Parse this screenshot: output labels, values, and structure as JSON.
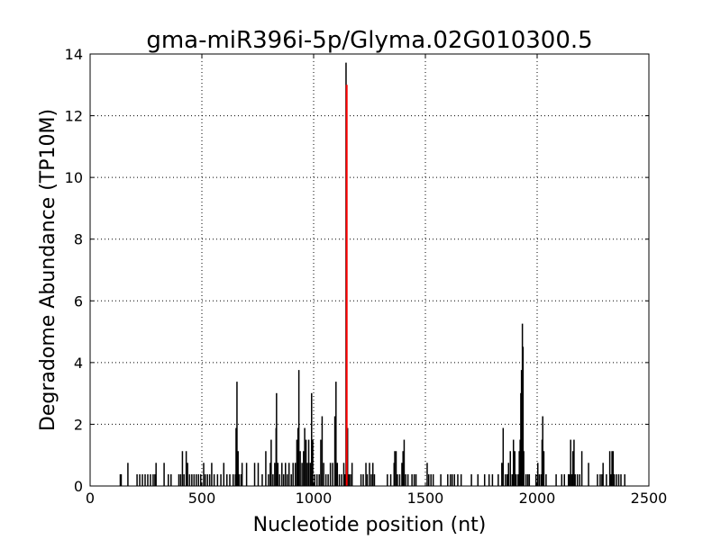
{
  "chart_data": {
    "type": "bar",
    "title": "gma-miR396i-5p/Glyma.02G010300.5",
    "xlabel": "Nucleotide position (nt)",
    "ylabel": "Degradome Abundance (TP10M)",
    "xlim": [
      0,
      2500
    ],
    "ylim": [
      0,
      14
    ],
    "xticks": [
      "0",
      "500",
      "1000",
      "1500",
      "2000",
      "2500"
    ],
    "yticks": [
      "0",
      "2",
      "4",
      "6",
      "8",
      "10",
      "12",
      "14"
    ],
    "grid": true,
    "colors": {
      "background": "#000000",
      "target": "#ff0000"
    },
    "series": [
      {
        "role": "background",
        "points": [
          [
            135,
            0.38
          ],
          [
            139,
            0.38
          ],
          [
            169,
            0.75
          ],
          [
            210,
            0.38
          ],
          [
            222,
            0.38
          ],
          [
            234,
            0.38
          ],
          [
            246,
            0.38
          ],
          [
            258,
            0.38
          ],
          [
            270,
            0.38
          ],
          [
            282,
            0.38
          ],
          [
            290,
            0.38
          ],
          [
            295,
            0.75
          ],
          [
            331,
            0.75
          ],
          [
            350,
            0.38
          ],
          [
            362,
            0.38
          ],
          [
            397,
            0.38
          ],
          [
            405,
            0.38
          ],
          [
            413,
            1.13
          ],
          [
            420,
            0.38
          ],
          [
            430,
            1.13
          ],
          [
            436,
            0.75
          ],
          [
            445,
            0.38
          ],
          [
            455,
            0.38
          ],
          [
            465,
            0.38
          ],
          [
            475,
            0.38
          ],
          [
            485,
            0.38
          ],
          [
            495,
            0.38
          ],
          [
            508,
            0.75
          ],
          [
            515,
            0.38
          ],
          [
            525,
            0.38
          ],
          [
            535,
            0.38
          ],
          [
            544,
            0.75
          ],
          [
            555,
            0.38
          ],
          [
            570,
            0.38
          ],
          [
            585,
            0.38
          ],
          [
            598,
            0.75
          ],
          [
            612,
            0.38
          ],
          [
            625,
            0.38
          ],
          [
            640,
            0.38
          ],
          [
            650,
            0.38
          ],
          [
            653,
            1.88
          ],
          [
            657,
            3.38
          ],
          [
            662,
            1.13
          ],
          [
            666,
            0.38
          ],
          [
            675,
            0.38
          ],
          [
            680,
            0.75
          ],
          [
            700,
            0.75
          ],
          [
            736,
            0.75
          ],
          [
            752,
            0.75
          ],
          [
            770,
            0.38
          ],
          [
            786,
            1.13
          ],
          [
            798,
            0.38
          ],
          [
            806,
            0.75
          ],
          [
            810,
            1.5
          ],
          [
            818,
            0.38
          ],
          [
            826,
            0.75
          ],
          [
            832,
            1.88
          ],
          [
            834,
            3.01
          ],
          [
            840,
            0.75
          ],
          [
            848,
            0.38
          ],
          [
            858,
            0.75
          ],
          [
            866,
            0.38
          ],
          [
            874,
            0.75
          ],
          [
            882,
            0.38
          ],
          [
            890,
            0.75
          ],
          [
            900,
            0.38
          ],
          [
            908,
            0.75
          ],
          [
            918,
            0.75
          ],
          [
            925,
            1.5
          ],
          [
            930,
            1.88
          ],
          [
            934,
            3.76
          ],
          [
            940,
            1.13
          ],
          [
            948,
            0.75
          ],
          [
            955,
            1.13
          ],
          [
            960,
            1.88
          ],
          [
            966,
            1.5
          ],
          [
            972,
            0.75
          ],
          [
            978,
            1.5
          ],
          [
            985,
            0.75
          ],
          [
            991,
            3.01
          ],
          [
            996,
            1.5
          ],
          [
            1005,
            0.38
          ],
          [
            1015,
            0.38
          ],
          [
            1025,
            0.38
          ],
          [
            1032,
            1.5
          ],
          [
            1038,
            2.26
          ],
          [
            1045,
            0.75
          ],
          [
            1055,
            0.38
          ],
          [
            1065,
            0.38
          ],
          [
            1075,
            0.75
          ],
          [
            1085,
            0.75
          ],
          [
            1095,
            2.26
          ],
          [
            1100,
            3.38
          ],
          [
            1106,
            0.75
          ],
          [
            1115,
            0.38
          ],
          [
            1125,
            0.38
          ],
          [
            1135,
            0.75
          ],
          [
            1140,
            0.38
          ],
          [
            1145,
            13.72
          ],
          [
            1152,
            1.88
          ],
          [
            1158,
            0.38
          ],
          [
            1165,
            0.38
          ],
          [
            1172,
            0.75
          ],
          [
            1212,
            0.38
          ],
          [
            1222,
            0.38
          ],
          [
            1234,
            0.75
          ],
          [
            1240,
            0.38
          ],
          [
            1250,
            0.75
          ],
          [
            1258,
            0.38
          ],
          [
            1265,
            0.75
          ],
          [
            1272,
            0.38
          ],
          [
            1330,
            0.38
          ],
          [
            1345,
            0.38
          ],
          [
            1360,
            0.75
          ],
          [
            1363,
            1.13
          ],
          [
            1369,
            1.13
          ],
          [
            1375,
            0.38
          ],
          [
            1385,
            0.38
          ],
          [
            1395,
            0.75
          ],
          [
            1400,
            1.13
          ],
          [
            1405,
            1.5
          ],
          [
            1412,
            0.38
          ],
          [
            1422,
            0.38
          ],
          [
            1440,
            0.38
          ],
          [
            1450,
            0.38
          ],
          [
            1458,
            0.38
          ],
          [
            1508,
            0.75
          ],
          [
            1515,
            0.38
          ],
          [
            1525,
            0.38
          ],
          [
            1535,
            0.38
          ],
          [
            1569,
            0.38
          ],
          [
            1600,
            0.38
          ],
          [
            1612,
            0.38
          ],
          [
            1620,
            0.38
          ],
          [
            1630,
            0.38
          ],
          [
            1645,
            0.38
          ],
          [
            1660,
            0.38
          ],
          [
            1706,
            0.38
          ],
          [
            1735,
            0.38
          ],
          [
            1765,
            0.38
          ],
          [
            1785,
            0.38
          ],
          [
            1800,
            0.38
          ],
          [
            1826,
            0.38
          ],
          [
            1842,
            0.75
          ],
          [
            1848,
            1.88
          ],
          [
            1858,
            0.38
          ],
          [
            1866,
            0.38
          ],
          [
            1872,
            0.75
          ],
          [
            1880,
            1.13
          ],
          [
            1888,
            0.38
          ],
          [
            1894,
            1.5
          ],
          [
            1900,
            1.13
          ],
          [
            1906,
            0.38
          ],
          [
            1915,
            0.38
          ],
          [
            1920,
            1.13
          ],
          [
            1924,
            1.5
          ],
          [
            1927,
            3.01
          ],
          [
            1930,
            3.76
          ],
          [
            1934,
            5.26
          ],
          [
            1937,
            4.51
          ],
          [
            1940,
            1.13
          ],
          [
            1950,
            0.38
          ],
          [
            1958,
            0.38
          ],
          [
            1965,
            0.38
          ],
          [
            1995,
            0.38
          ],
          [
            2003,
            0.75
          ],
          [
            2010,
            0.38
          ],
          [
            2018,
            0.38
          ],
          [
            2022,
            1.5
          ],
          [
            2025,
            2.26
          ],
          [
            2030,
            1.13
          ],
          [
            2040,
            0.38
          ],
          [
            2085,
            0.38
          ],
          [
            2110,
            0.38
          ],
          [
            2122,
            0.38
          ],
          [
            2140,
            0.38
          ],
          [
            2146,
            0.38
          ],
          [
            2150,
            1.5
          ],
          [
            2156,
            0.38
          ],
          [
            2160,
            1.13
          ],
          [
            2165,
            1.5
          ],
          [
            2170,
            0.38
          ],
          [
            2180,
            0.38
          ],
          [
            2190,
            0.38
          ],
          [
            2200,
            1.13
          ],
          [
            2230,
            0.75
          ],
          [
            2270,
            0.38
          ],
          [
            2282,
            0.38
          ],
          [
            2290,
            0.38
          ],
          [
            2295,
            0.75
          ],
          [
            2310,
            0.38
          ],
          [
            2325,
            1.13
          ],
          [
            2330,
            0.38
          ],
          [
            2335,
            1.13
          ],
          [
            2340,
            1.13
          ],
          [
            2345,
            0.38
          ],
          [
            2355,
            0.38
          ],
          [
            2365,
            0.38
          ],
          [
            2375,
            0.38
          ],
          [
            2392,
            0.38
          ]
        ]
      },
      {
        "role": "target",
        "points": [
          [
            1148,
            13.0
          ]
        ]
      }
    ]
  }
}
